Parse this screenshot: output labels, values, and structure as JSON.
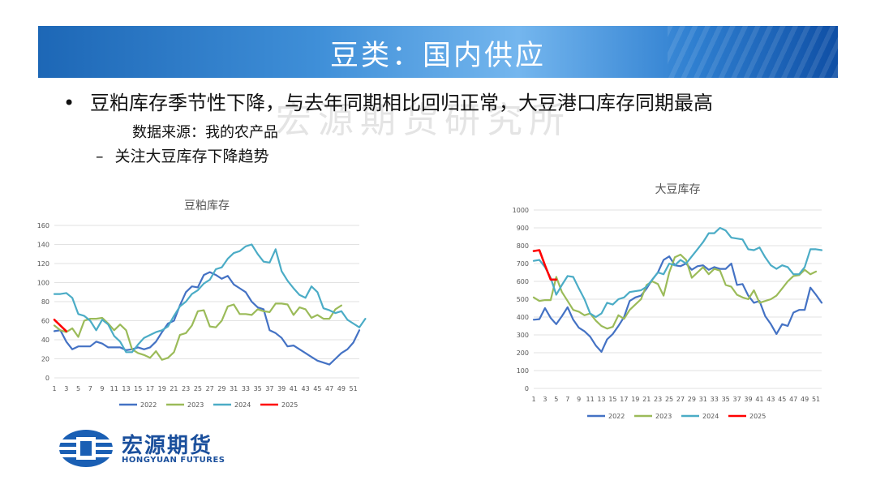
{
  "header": {
    "title": "豆类：国内供应"
  },
  "bullets": {
    "main_text": "豆粕库存季节性下降，与去年同期相比回归正常，大豆港口库存同期最高",
    "source_text": "数据来源：我的农产品",
    "sub_dash": "–",
    "sub_text": "关注大豆库存下降趋势"
  },
  "watermark": {
    "text": "宏源期货研究所"
  },
  "logo": {
    "cn": "宏源期货",
    "en": "HONGYUAN FUTURES"
  },
  "colors": {
    "2022": "#4472c4",
    "2023": "#9bbb59",
    "2024": "#4bacc6",
    "2025": "#ff0000",
    "banner": "#1d67b6"
  },
  "chart_data": [
    {
      "type": "line",
      "title": "豆粕库存",
      "ylim": [
        0,
        160
      ],
      "yticks": [
        0,
        20,
        40,
        60,
        80,
        100,
        120,
        140,
        160
      ],
      "x_tick_labels": [
        "1",
        "3",
        "5",
        "7",
        "9",
        "11",
        "13",
        "15",
        "17",
        "19",
        "21",
        "23",
        "25",
        "27",
        "29",
        "31",
        "33",
        "35",
        "37",
        "39",
        "41",
        "43",
        "45",
        "47",
        "49",
        "51"
      ],
      "legend_position": "bottom",
      "series": [
        {
          "name": "2022",
          "values": [
            49,
            50,
            38,
            30,
            33,
            33,
            33,
            38,
            36,
            32,
            32,
            32,
            29,
            30,
            32,
            30,
            32,
            38,
            48,
            57,
            60,
            76,
            90,
            96,
            95,
            108,
            111,
            108,
            104,
            107,
            98,
            94,
            90,
            80,
            74,
            72,
            50,
            47,
            42,
            33,
            34,
            30,
            26,
            22,
            18,
            16,
            14,
            20,
            26,
            30,
            37,
            50
          ]
        },
        {
          "name": "2023",
          "values": [
            55,
            50,
            48,
            52,
            43,
            60,
            62,
            62,
            63,
            57,
            50,
            56,
            50,
            30,
            26,
            24,
            21,
            28,
            19,
            21,
            27,
            45,
            47,
            55,
            70,
            71,
            54,
            53,
            60,
            75,
            77,
            67,
            67,
            66,
            72,
            70,
            69,
            78,
            78,
            77,
            66,
            74,
            72,
            63,
            66,
            62,
            62,
            72,
            76
          ]
        },
        {
          "name": "2024",
          "values": [
            88,
            88,
            89,
            84,
            67,
            65,
            60,
            50,
            61,
            56,
            44,
            38,
            27,
            27,
            35,
            42,
            45,
            48,
            50,
            54,
            65,
            75,
            80,
            88,
            92,
            99,
            103,
            114,
            116,
            125,
            131,
            133,
            138,
            140,
            130,
            122,
            121,
            135,
            112,
            102,
            94,
            87,
            84,
            96,
            90,
            73,
            71,
            68,
            70,
            61,
            57,
            53,
            62
          ]
        },
        {
          "name": "2025",
          "values": [
            61,
            55,
            49
          ]
        }
      ]
    },
    {
      "type": "line",
      "title": "大豆库存",
      "ylim": [
        0,
        1000
      ],
      "yticks": [
        0,
        100,
        200,
        300,
        400,
        500,
        600,
        700,
        800,
        900,
        1000
      ],
      "x_tick_labels": [
        "1",
        "3",
        "5",
        "7",
        "9",
        "11",
        "13",
        "15",
        "17",
        "19",
        "21",
        "23",
        "25",
        "27",
        "29",
        "31",
        "33",
        "35",
        "37",
        "39",
        "41",
        "43",
        "45",
        "47",
        "49",
        "51"
      ],
      "legend_position": "bottom",
      "series": [
        {
          "name": "2022",
          "values": [
            385,
            388,
            450,
            395,
            360,
            405,
            455,
            385,
            340,
            320,
            290,
            240,
            205,
            275,
            305,
            350,
            400,
            490,
            510,
            520,
            560,
            610,
            650,
            720,
            740,
            690,
            685,
            700,
            665,
            685,
            690,
            665,
            680,
            670,
            670,
            700,
            580,
            585,
            520,
            480,
            490,
            405,
            360,
            305,
            360,
            350,
            425,
            440,
            440,
            565,
            525,
            480
          ]
        },
        {
          "name": "2023",
          "values": [
            510,
            490,
            495,
            495,
            625,
            540,
            490,
            440,
            430,
            410,
            420,
            380,
            350,
            335,
            345,
            410,
            390,
            440,
            470,
            500,
            580,
            600,
            585,
            520,
            650,
            735,
            750,
            720,
            620,
            650,
            680,
            640,
            670,
            660,
            580,
            570,
            525,
            510,
            500,
            550,
            480,
            490,
            500,
            520,
            560,
            600,
            630,
            635,
            665,
            640,
            655
          ]
        },
        {
          "name": "2024",
          "values": [
            715,
            720,
            680,
            620,
            525,
            580,
            630,
            625,
            560,
            500,
            420,
            400,
            420,
            480,
            470,
            500,
            510,
            540,
            545,
            550,
            570,
            610,
            650,
            640,
            700,
            690,
            720,
            700,
            740,
            780,
            820,
            870,
            870,
            900,
            885,
            845,
            840,
            835,
            780,
            775,
            790,
            735,
            690,
            670,
            690,
            680,
            640,
            640,
            680,
            780,
            780,
            775
          ]
        },
        {
          "name": "2025",
          "values": [
            770,
            775,
            690,
            610,
            610
          ]
        }
      ]
    }
  ]
}
